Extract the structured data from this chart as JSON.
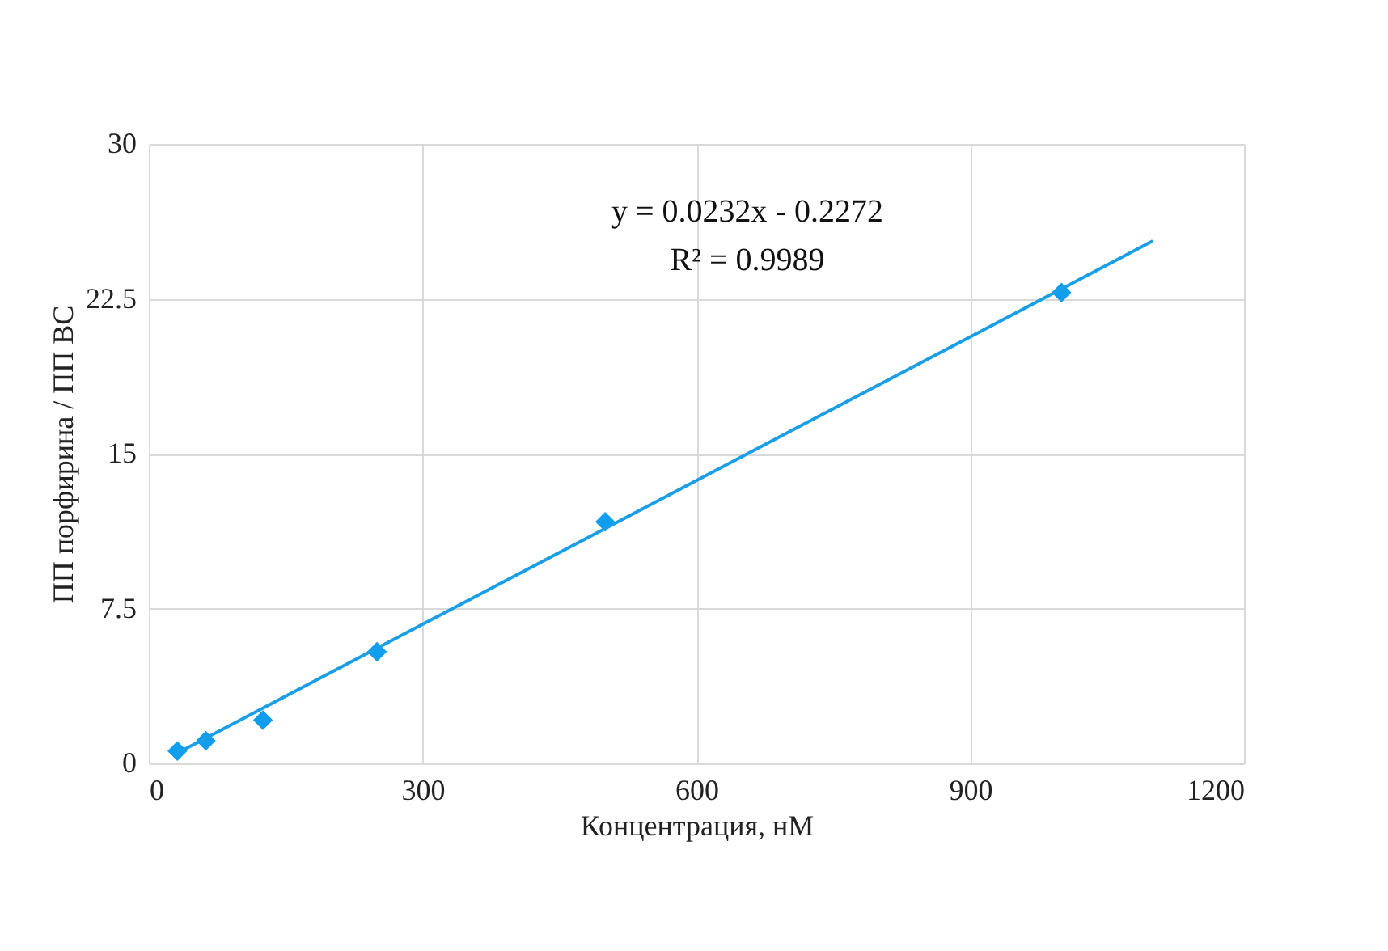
{
  "chart_data": {
    "type": "scatter",
    "xlabel": "Концентрация, нМ",
    "ylabel": "ПП порфирина / ПП ВС",
    "xlim": [
      0,
      1200
    ],
    "xticks": [
      0,
      300,
      600,
      900,
      1200
    ],
    "ylim": [
      0,
      30
    ],
    "yticks": [
      0,
      7.5,
      15,
      22.5,
      30
    ],
    "grid": true,
    "annotations": [
      "y = 0.0232x - 0.2272",
      "R² = 0.9989"
    ],
    "series": [
      {
        "type": "scatter",
        "color": "#0f9ded",
        "marker": "diamond",
        "x": [
          31.25,
          62.5,
          125,
          250,
          500,
          1000
        ],
        "values": [
          0.6,
          1.1,
          2.1,
          5.4,
          11.7,
          22.8
        ]
      },
      {
        "type": "line",
        "color": "#1a9fe6",
        "marker": "none",
        "x": [
          31.25,
          1100
        ],
        "values": [
          0.5,
          25.3
        ]
      }
    ]
  }
}
